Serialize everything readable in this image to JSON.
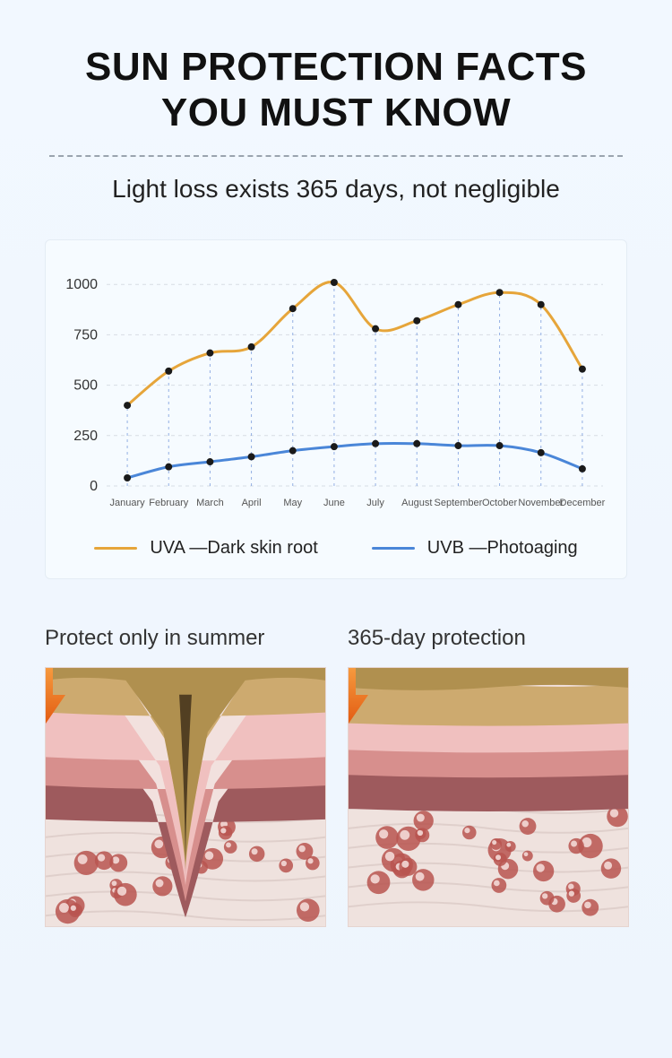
{
  "title_line1": "SUN PROTECTION FACTS",
  "title_line2": "YOU MUST KNOW",
  "subtitle": "Light loss exists 365 days, not negligible",
  "chart": {
    "type": "line",
    "background_color": "#f6fbff",
    "grid_color": "#d7dde4",
    "drop_line_color": "#6a8fd8",
    "y_ticks": [
      0,
      250,
      500,
      750,
      1000
    ],
    "ylim": [
      0,
      1050
    ],
    "y_tick_fontsize": 16,
    "x_tick_fontsize": 11,
    "categories": [
      "January",
      "February",
      "March",
      "April",
      "May",
      "June",
      "July",
      "August",
      "September",
      "October",
      "November",
      "December"
    ],
    "series": [
      {
        "name": "UVA",
        "label": "UVA —Dark skin root",
        "color": "#e6a53a",
        "line_width": 3,
        "marker_color": "#1a1a1a",
        "marker_radius": 4,
        "values": [
          400,
          570,
          660,
          690,
          880,
          1010,
          780,
          820,
          900,
          960,
          900,
          580
        ]
      },
      {
        "name": "UVB",
        "label": "UVB —Photoaging",
        "color": "#4a86d8",
        "line_width": 3,
        "marker_color": "#1a1a1a",
        "marker_radius": 4,
        "values": [
          40,
          95,
          120,
          145,
          175,
          195,
          210,
          210,
          200,
          200,
          165,
          85
        ]
      }
    ]
  },
  "compare": {
    "left_title": "Protect only in summer",
    "right_title": "365-day protection",
    "arrow_color_top": "#f69a3e",
    "arrow_color_bottom": "#e35b12",
    "skin_colors": {
      "epidermis": "#cdaa6f",
      "epidermis_dark": "#b0904f",
      "dermis_light": "#f0c0bf",
      "dermis_mid": "#d78f8d",
      "dermis_dark": "#9e5a5d",
      "sub_bg": "#efe2de",
      "vein": "#d9c7c3",
      "cell_fill": "#b95550",
      "cell_hi": "#f3d9d6"
    }
  }
}
